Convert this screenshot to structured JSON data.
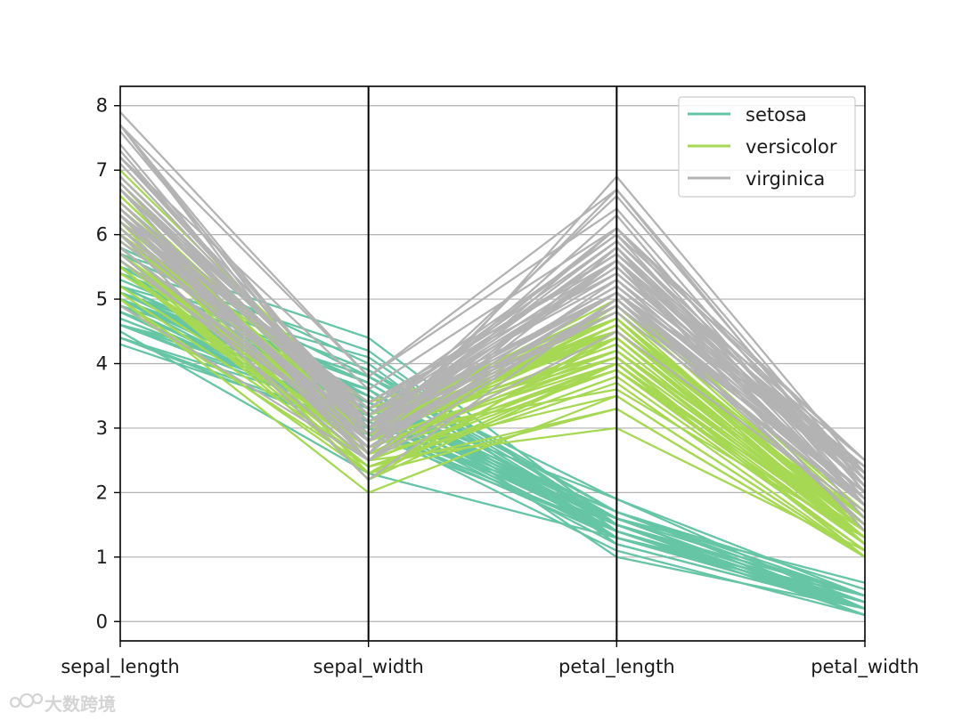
{
  "chart_data": {
    "type": "parallel_coordinates",
    "title": "",
    "axes": [
      "sepal_length",
      "sepal_width",
      "petal_length",
      "petal_width"
    ],
    "ylim": [
      -0.3,
      8.3
    ],
    "yticks": [
      0,
      1,
      2,
      3,
      4,
      5,
      6,
      7,
      8
    ],
    "grid": true,
    "legend_position": "top-right",
    "series": [
      {
        "name": "setosa",
        "color": "#66c5a4",
        "lines": [
          [
            5.1,
            3.5,
            1.4,
            0.2
          ],
          [
            4.9,
            3.0,
            1.4,
            0.2
          ],
          [
            4.7,
            3.2,
            1.3,
            0.2
          ],
          [
            4.6,
            3.1,
            1.5,
            0.2
          ],
          [
            5.0,
            3.6,
            1.4,
            0.2
          ],
          [
            5.4,
            3.9,
            1.7,
            0.4
          ],
          [
            4.6,
            3.4,
            1.4,
            0.3
          ],
          [
            5.0,
            3.4,
            1.5,
            0.2
          ],
          [
            4.4,
            2.9,
            1.4,
            0.2
          ],
          [
            4.9,
            3.1,
            1.5,
            0.1
          ],
          [
            5.4,
            3.7,
            1.5,
            0.2
          ],
          [
            4.8,
            3.4,
            1.6,
            0.2
          ],
          [
            4.8,
            3.0,
            1.4,
            0.1
          ],
          [
            4.3,
            3.0,
            1.1,
            0.1
          ],
          [
            5.8,
            4.0,
            1.2,
            0.2
          ],
          [
            5.7,
            4.4,
            1.5,
            0.4
          ],
          [
            5.4,
            3.9,
            1.3,
            0.4
          ],
          [
            5.1,
            3.5,
            1.4,
            0.3
          ],
          [
            5.7,
            3.8,
            1.7,
            0.3
          ],
          [
            5.1,
            3.8,
            1.5,
            0.3
          ],
          [
            5.4,
            3.4,
            1.7,
            0.2
          ],
          [
            5.1,
            3.7,
            1.5,
            0.4
          ],
          [
            4.6,
            3.6,
            1.0,
            0.2
          ],
          [
            5.1,
            3.3,
            1.7,
            0.5
          ],
          [
            4.8,
            3.4,
            1.9,
            0.2
          ],
          [
            5.0,
            3.0,
            1.6,
            0.2
          ],
          [
            5.0,
            3.4,
            1.6,
            0.4
          ],
          [
            5.2,
            3.5,
            1.5,
            0.2
          ],
          [
            5.2,
            3.4,
            1.4,
            0.2
          ],
          [
            4.7,
            3.2,
            1.6,
            0.2
          ],
          [
            4.8,
            3.1,
            1.6,
            0.2
          ],
          [
            5.4,
            3.4,
            1.5,
            0.4
          ],
          [
            5.2,
            4.1,
            1.5,
            0.1
          ],
          [
            5.5,
            4.2,
            1.4,
            0.2
          ],
          [
            4.9,
            3.1,
            1.5,
            0.2
          ],
          [
            5.0,
            3.2,
            1.2,
            0.2
          ],
          [
            5.5,
            3.5,
            1.3,
            0.2
          ],
          [
            4.9,
            3.6,
            1.4,
            0.1
          ],
          [
            4.4,
            3.0,
            1.3,
            0.2
          ],
          [
            5.1,
            3.4,
            1.5,
            0.2
          ],
          [
            5.0,
            3.5,
            1.3,
            0.3
          ],
          [
            4.5,
            2.3,
            1.3,
            0.3
          ],
          [
            4.4,
            3.2,
            1.3,
            0.2
          ],
          [
            5.0,
            3.5,
            1.6,
            0.6
          ],
          [
            5.1,
            3.8,
            1.9,
            0.4
          ],
          [
            4.8,
            3.0,
            1.4,
            0.3
          ],
          [
            5.1,
            3.8,
            1.6,
            0.2
          ],
          [
            4.6,
            3.2,
            1.4,
            0.2
          ],
          [
            5.3,
            3.7,
            1.5,
            0.2
          ],
          [
            5.0,
            3.3,
            1.4,
            0.2
          ]
        ]
      },
      {
        "name": "versicolor",
        "color": "#a6d854",
        "lines": [
          [
            7.0,
            3.2,
            4.7,
            1.4
          ],
          [
            6.4,
            3.2,
            4.5,
            1.5
          ],
          [
            6.9,
            3.1,
            4.9,
            1.5
          ],
          [
            5.5,
            2.3,
            4.0,
            1.3
          ],
          [
            6.5,
            2.8,
            4.6,
            1.5
          ],
          [
            5.7,
            2.8,
            4.5,
            1.3
          ],
          [
            6.3,
            3.3,
            4.7,
            1.6
          ],
          [
            4.9,
            2.4,
            3.3,
            1.0
          ],
          [
            6.6,
            2.9,
            4.6,
            1.3
          ],
          [
            5.2,
            2.7,
            3.9,
            1.4
          ],
          [
            5.0,
            2.0,
            3.5,
            1.0
          ],
          [
            5.9,
            3.0,
            4.2,
            1.5
          ],
          [
            6.0,
            2.2,
            4.0,
            1.0
          ],
          [
            6.1,
            2.9,
            4.7,
            1.4
          ],
          [
            5.6,
            2.9,
            3.6,
            1.3
          ],
          [
            6.7,
            3.1,
            4.4,
            1.4
          ],
          [
            5.6,
            3.0,
            4.5,
            1.5
          ],
          [
            5.8,
            2.7,
            4.1,
            1.0
          ],
          [
            6.2,
            2.2,
            4.5,
            1.5
          ],
          [
            5.6,
            2.5,
            3.9,
            1.1
          ],
          [
            5.9,
            3.2,
            4.8,
            1.8
          ],
          [
            6.1,
            2.8,
            4.0,
            1.3
          ],
          [
            6.3,
            2.5,
            4.9,
            1.5
          ],
          [
            6.1,
            2.8,
            4.7,
            1.2
          ],
          [
            6.4,
            2.9,
            4.3,
            1.3
          ],
          [
            6.6,
            3.0,
            4.4,
            1.4
          ],
          [
            6.8,
            2.8,
            4.8,
            1.4
          ],
          [
            6.7,
            3.0,
            5.0,
            1.7
          ],
          [
            6.0,
            2.9,
            4.5,
            1.5
          ],
          [
            5.7,
            2.6,
            3.5,
            1.0
          ],
          [
            5.5,
            2.4,
            3.8,
            1.1
          ],
          [
            5.5,
            2.4,
            3.7,
            1.0
          ],
          [
            5.8,
            2.7,
            3.9,
            1.2
          ],
          [
            6.0,
            2.7,
            5.1,
            1.6
          ],
          [
            5.4,
            3.0,
            4.5,
            1.5
          ],
          [
            6.0,
            3.4,
            4.5,
            1.6
          ],
          [
            6.7,
            3.1,
            4.7,
            1.5
          ],
          [
            6.3,
            2.3,
            4.4,
            1.3
          ],
          [
            5.6,
            3.0,
            4.1,
            1.3
          ],
          [
            5.5,
            2.5,
            4.0,
            1.3
          ],
          [
            5.5,
            2.6,
            4.4,
            1.2
          ],
          [
            6.1,
            3.0,
            4.6,
            1.4
          ],
          [
            5.8,
            2.6,
            4.0,
            1.2
          ],
          [
            5.0,
            2.3,
            3.3,
            1.0
          ],
          [
            5.6,
            2.7,
            4.2,
            1.3
          ],
          [
            5.7,
            3.0,
            4.2,
            1.2
          ],
          [
            5.7,
            2.9,
            4.2,
            1.3
          ],
          [
            6.2,
            2.9,
            4.3,
            1.3
          ],
          [
            5.1,
            2.5,
            3.0,
            1.1
          ],
          [
            5.7,
            2.8,
            4.1,
            1.3
          ]
        ]
      },
      {
        "name": "virginica",
        "color": "#b3b3b3",
        "lines": [
          [
            6.3,
            3.3,
            6.0,
            2.5
          ],
          [
            5.8,
            2.7,
            5.1,
            1.9
          ],
          [
            7.1,
            3.0,
            5.9,
            2.1
          ],
          [
            6.3,
            2.9,
            5.6,
            1.8
          ],
          [
            6.5,
            3.0,
            5.8,
            2.2
          ],
          [
            7.6,
            3.0,
            6.6,
            2.1
          ],
          [
            4.9,
            2.5,
            4.5,
            1.7
          ],
          [
            7.3,
            2.9,
            6.3,
            1.8
          ],
          [
            6.7,
            2.5,
            5.8,
            1.8
          ],
          [
            7.2,
            3.6,
            6.1,
            2.5
          ],
          [
            6.5,
            3.2,
            5.1,
            2.0
          ],
          [
            6.4,
            2.7,
            5.3,
            1.9
          ],
          [
            6.8,
            3.0,
            5.5,
            2.1
          ],
          [
            5.7,
            2.5,
            5.0,
            2.0
          ],
          [
            5.8,
            2.8,
            5.1,
            2.4
          ],
          [
            6.4,
            3.2,
            5.3,
            2.3
          ],
          [
            6.5,
            3.0,
            5.5,
            1.8
          ],
          [
            7.7,
            3.8,
            6.7,
            2.2
          ],
          [
            7.7,
            2.6,
            6.9,
            2.3
          ],
          [
            6.0,
            2.2,
            5.0,
            1.5
          ],
          [
            6.9,
            3.2,
            5.7,
            2.3
          ],
          [
            5.6,
            2.8,
            4.9,
            2.0
          ],
          [
            7.7,
            2.8,
            6.7,
            2.0
          ],
          [
            6.3,
            2.7,
            4.9,
            1.8
          ],
          [
            6.7,
            3.3,
            5.7,
            2.1
          ],
          [
            7.2,
            3.2,
            6.0,
            1.8
          ],
          [
            6.2,
            2.8,
            4.8,
            1.8
          ],
          [
            6.1,
            3.0,
            4.9,
            1.8
          ],
          [
            6.4,
            2.8,
            5.6,
            2.1
          ],
          [
            7.2,
            3.0,
            5.8,
            1.6
          ],
          [
            7.4,
            2.8,
            6.1,
            1.9
          ],
          [
            7.9,
            3.8,
            6.4,
            2.0
          ],
          [
            6.4,
            2.8,
            5.6,
            2.2
          ],
          [
            6.3,
            2.8,
            5.1,
            1.5
          ],
          [
            6.1,
            2.6,
            5.6,
            1.4
          ],
          [
            7.7,
            3.0,
            6.1,
            2.3
          ],
          [
            6.3,
            3.4,
            5.6,
            2.4
          ],
          [
            6.4,
            3.1,
            5.5,
            1.8
          ],
          [
            6.0,
            3.0,
            4.8,
            1.8
          ],
          [
            6.9,
            3.1,
            5.4,
            2.1
          ],
          [
            6.7,
            3.1,
            5.6,
            2.4
          ],
          [
            6.9,
            3.1,
            5.1,
            2.3
          ],
          [
            5.8,
            2.7,
            5.1,
            1.9
          ],
          [
            6.8,
            3.2,
            5.9,
            2.3
          ],
          [
            6.7,
            3.3,
            5.7,
            2.5
          ],
          [
            6.7,
            3.0,
            5.2,
            2.3
          ],
          [
            6.3,
            2.5,
            5.0,
            1.9
          ],
          [
            6.5,
            3.0,
            5.2,
            2.0
          ],
          [
            6.2,
            3.4,
            5.4,
            2.3
          ],
          [
            5.9,
            3.0,
            5.1,
            1.8
          ]
        ]
      }
    ]
  },
  "watermark": {
    "text": "大数跨境"
  }
}
